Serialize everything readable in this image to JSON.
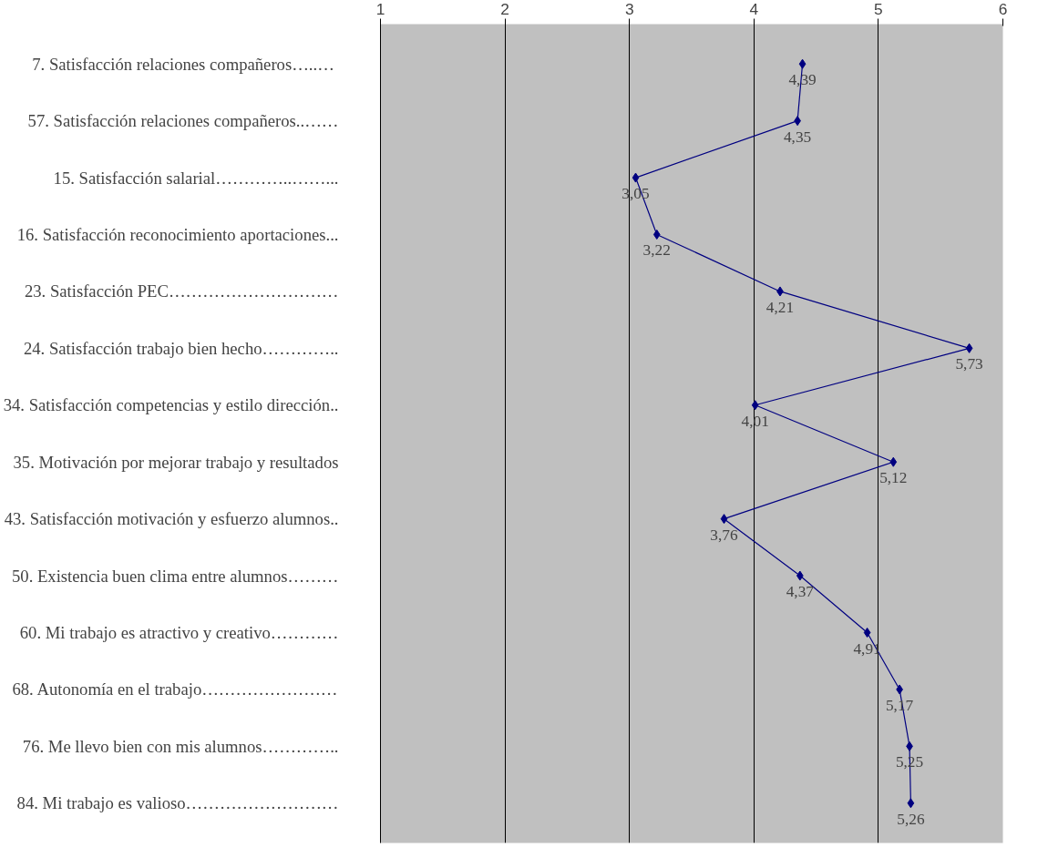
{
  "chart_data": {
    "type": "line",
    "orientation": "horizontal",
    "categories": [
      "7. Satisfacción relaciones  compañeros…..…",
      "57. Satisfacción relaciones compañeros..……",
      "15. Satisfacción salarial…………..……...",
      "16. Satisfacción reconocimiento aportaciones...",
      "23. Satisfacción PEC…………………………",
      "24. Satisfacción trabajo bien hecho…………..",
      "34. Satisfacción competencias y estilo dirección..",
      "35. Motivación por mejorar trabajo y resultados",
      "43. Satisfacción motivación y esfuerzo alumnos..",
      "50. Existencia buen clima entre alumnos………",
      "60. Mi trabajo es atractivo y creativo…………",
      "68. Autonomía en el trabajo……………………",
      "76. Me llevo bien con mis alumnos…………..",
      "84. Mi trabajo es valioso………………………"
    ],
    "values": [
      4.39,
      4.35,
      3.05,
      3.22,
      4.21,
      5.73,
      4.01,
      5.12,
      3.76,
      4.37,
      4.91,
      5.17,
      5.25,
      5.26
    ],
    "value_labels": [
      "4,39",
      "4,35",
      "3,05",
      "3,22",
      "4,21",
      "5,73",
      "4,01",
      "5,12",
      "3,76",
      "4,37",
      "4,91",
      "5,17",
      "5,25",
      "5,26"
    ],
    "color": "#000080",
    "xlim": [
      1,
      6
    ],
    "xticks": [
      1,
      2,
      3,
      4,
      5,
      6
    ],
    "grid": "x",
    "marker": "diamond"
  }
}
